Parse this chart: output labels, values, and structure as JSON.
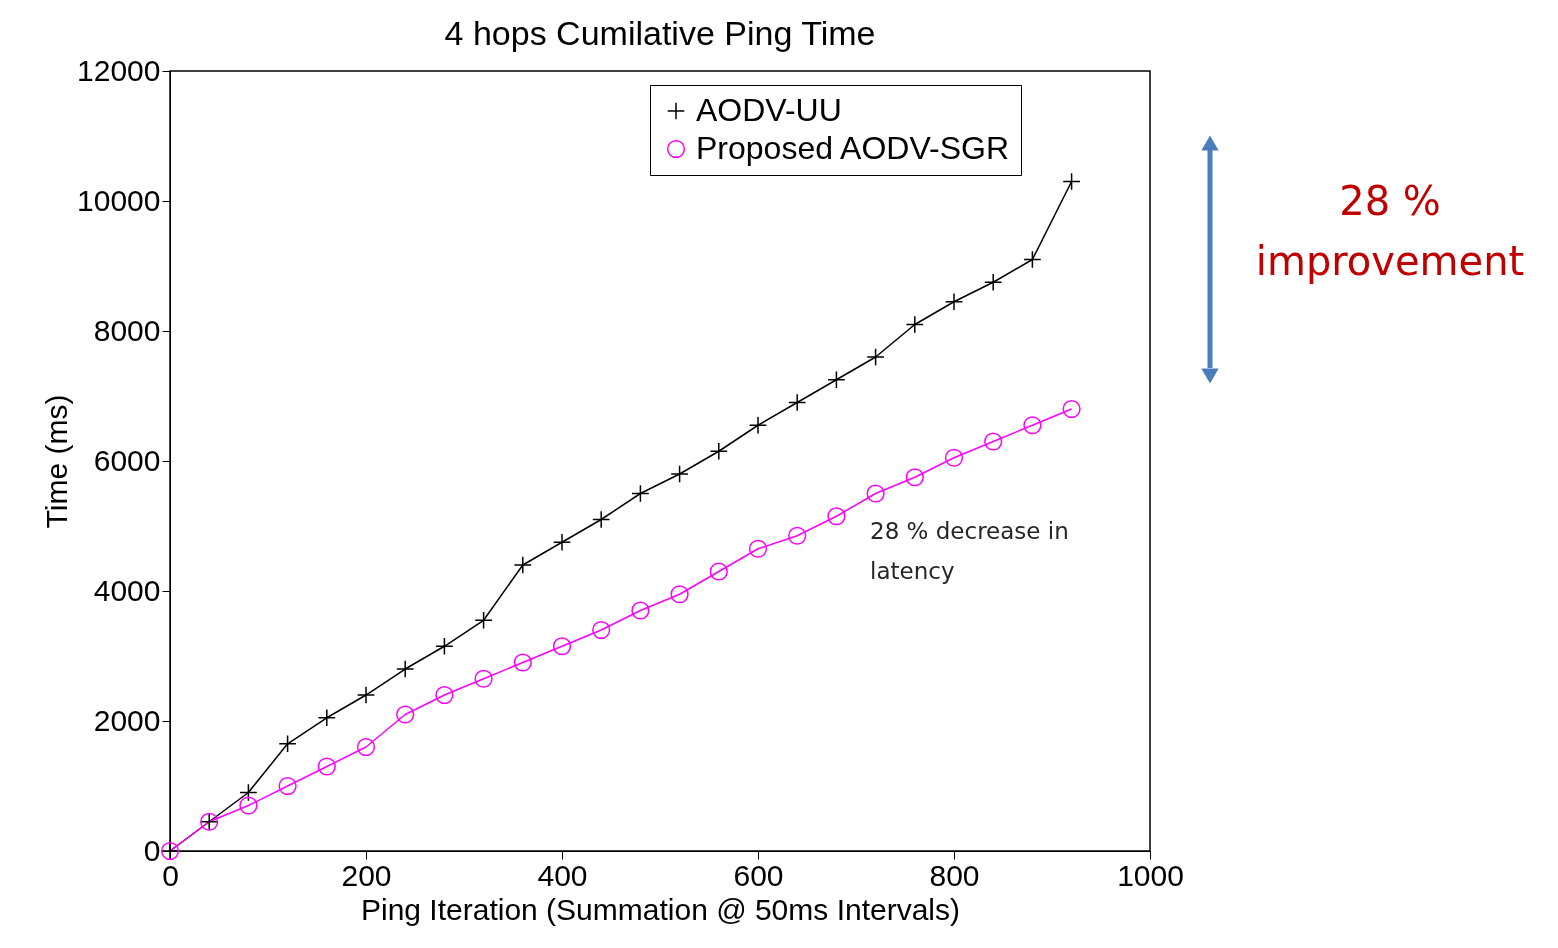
{
  "chart_data": {
    "type": "line",
    "title": "4 hops Cumilative Ping Time",
    "xlabel": "Ping Iteration (Summation @ 50ms Intervals)",
    "ylabel": "Time (ms)",
    "x": [
      0,
      40,
      80,
      120,
      160,
      200,
      240,
      280,
      320,
      360,
      400,
      440,
      480,
      520,
      560,
      600,
      640,
      680,
      720,
      760,
      800,
      840,
      880,
      920
    ],
    "series": [
      {
        "name": "AODV-UU",
        "color": "#000000",
        "marker": "cross",
        "values": [
          0,
          450,
          900,
          1650,
          2050,
          2400,
          2800,
          3150,
          3550,
          4400,
          4750,
          5100,
          5500,
          5800,
          6150,
          6550,
          6900,
          7250,
          7600,
          8100,
          8450,
          8750,
          9100,
          10300
        ]
      },
      {
        "name": "Proposed AODV-SGR",
        "color": "#ff00ff",
        "marker": "circle",
        "values": [
          0,
          450,
          700,
          1000,
          1300,
          1600,
          2100,
          2400,
          2650,
          2900,
          3150,
          3400,
          3700,
          3950,
          4300,
          4650,
          4850,
          5150,
          5500,
          5750,
          6050,
          6300,
          6550,
          6800
        ]
      }
    ],
    "xlim": [
      0,
      1000
    ],
    "xticks": [
      0,
      200,
      400,
      600,
      800,
      1000
    ],
    "ylim": [
      0,
      12000
    ],
    "yticks": [
      0,
      2000,
      4000,
      6000,
      8000,
      10000,
      12000
    ],
    "grid": false,
    "legend": "top right",
    "line_style": "solid",
    "annotations": [
      "28 % decrease in latency",
      "28 % improvement"
    ]
  }
}
